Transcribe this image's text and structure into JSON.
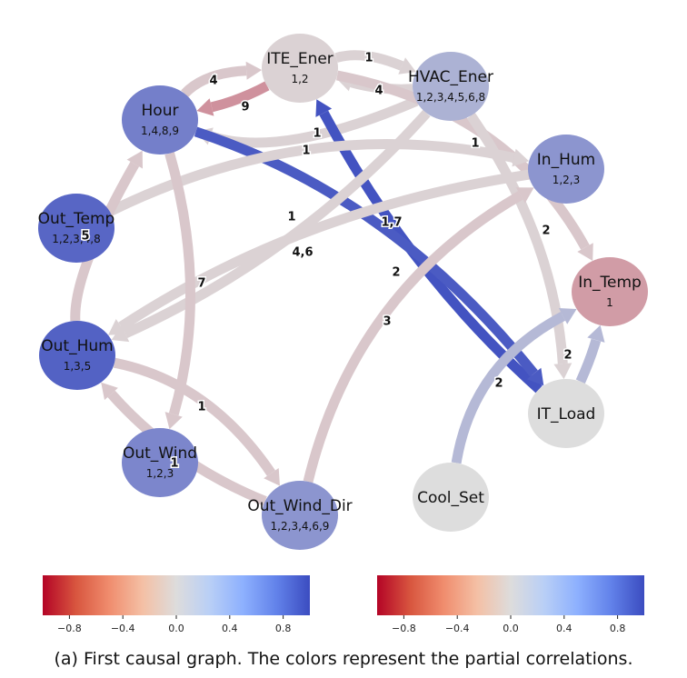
{
  "caption": "(a) First causal graph. The colors represent the partial correlations.",
  "colors": {
    "neg": "#b40426",
    "mid": "#dddddd",
    "pos": "#3b4cc0"
  },
  "nodes": [
    {
      "id": "ITE_Ener",
      "label": "ITE_Ener",
      "sub": "1,2",
      "value": -0.05
    },
    {
      "id": "HVAC_Ener",
      "label": "HVAC_Ener",
      "sub": "1,2,3,4,5,6,8",
      "value": 0.3
    },
    {
      "id": "Hour",
      "label": "Hour",
      "sub": "1,4,8,9",
      "value": 0.65
    },
    {
      "id": "In_Hum",
      "label": "In_Hum",
      "sub": "1,2,3",
      "value": 0.5
    },
    {
      "id": "Out_Temp",
      "label": "Out_Temp",
      "sub": "1,2,3,4,8",
      "value": 0.82
    },
    {
      "id": "In_Temp",
      "label": "In_Temp",
      "sub": "1",
      "value": -0.3
    },
    {
      "id": "Out_Hum",
      "label": "Out_Hum",
      "sub": "1,3,5",
      "value": 0.85
    },
    {
      "id": "IT_Load",
      "label": "IT_Load",
      "sub": "",
      "value": 0.0
    },
    {
      "id": "Out_Wind",
      "label": "Out_Wind",
      "sub": "1,2,3",
      "value": 0.6
    },
    {
      "id": "Out_Wind_Dir",
      "label": "Out_Wind_Dir",
      "sub": "1,2,3,4,6,9",
      "value": 0.5
    },
    {
      "id": "Cool_Set",
      "label": "Cool_Set",
      "sub": "",
      "value": 0.0
    }
  ],
  "edges": [
    {
      "from": "ITE_Ener",
      "to": "HVAC_Ener",
      "label": "1",
      "value": -0.05
    },
    {
      "from": "HVAC_Ener",
      "to": "ITE_Ener",
      "label": "4",
      "value": -0.05
    },
    {
      "from": "Hour",
      "to": "ITE_Ener",
      "label": "4",
      "value": -0.1
    },
    {
      "from": "ITE_Ener",
      "to": "Hour",
      "label": "9",
      "value": -0.35
    },
    {
      "from": "HVAC_Ener",
      "to": "Hour",
      "label": "1",
      "value": -0.05
    },
    {
      "from": "ITE_Ener",
      "to": "In_Temp",
      "label": "1",
      "value": -0.1
    },
    {
      "from": "IT_Load",
      "to": "ITE_Ener",
      "label": "2",
      "value": 0.95
    },
    {
      "from": "Hour",
      "to": "IT_Load",
      "label": "1,7",
      "value": 0.9
    },
    {
      "from": "Out_Temp",
      "to": "In_Hum",
      "label": "1",
      "value": -0.05
    },
    {
      "from": "In_Hum",
      "to": "Out_Hum",
      "label": "1",
      "value": -0.05
    },
    {
      "from": "HVAC_Ener",
      "to": "Out_Hum",
      "label": "4,6",
      "value": -0.05
    },
    {
      "from": "HVAC_Ener",
      "to": "IT_Load",
      "label": "2",
      "value": -0.05
    },
    {
      "from": "Hour",
      "to": "Out_Wind",
      "label": "7",
      "value": -0.1
    },
    {
      "from": "Out_Hum",
      "to": "Hour",
      "label": "5",
      "value": -0.1
    },
    {
      "from": "Out_Hum",
      "to": "Out_Wind_Dir",
      "label": "1",
      "value": -0.1
    },
    {
      "from": "Out_Wind_Dir",
      "to": "Out_Hum",
      "label": "1",
      "value": -0.1
    },
    {
      "from": "Out_Wind_Dir",
      "to": "In_Hum",
      "label": "3",
      "value": -0.1
    },
    {
      "from": "IT_Load",
      "to": "In_Temp",
      "label": "2",
      "value": 0.25
    },
    {
      "from": "Cool_Set",
      "to": "In_Temp",
      "label": "2",
      "value": 0.25
    }
  ],
  "colorbars": [
    {
      "ticks": [
        "−0.8",
        "−0.4",
        "0.0",
        "0.4",
        "0.8"
      ]
    },
    {
      "ticks": [
        "−0.8",
        "−0.4",
        "0.0",
        "0.4",
        "0.8"
      ]
    }
  ]
}
